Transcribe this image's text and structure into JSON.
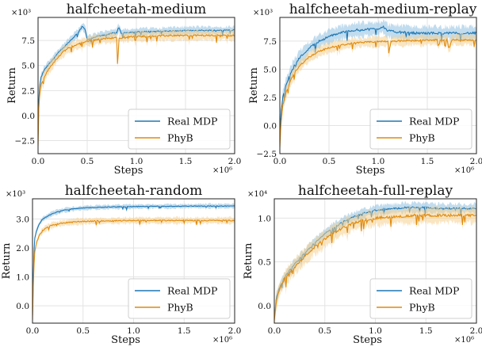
{
  "colors": {
    "real": "#1f77b4",
    "real_band": "#8ec0e0",
    "phyb": "#e08a0c",
    "phyb_band": "#f5cf8e",
    "grid": "#e3e3e3"
  },
  "chart_data": [
    {
      "type": "line",
      "title": "halfcheetah-medium",
      "xlabel": "Steps",
      "ylabel": "Return",
      "x_scale_label": "×10⁶",
      "y_scale_label": "×10³",
      "xlim": [
        0,
        2.0
      ],
      "ylim": [
        -3.8,
        9.8
      ],
      "xticks": [
        0.0,
        0.5,
        1.0,
        1.5,
        2.0
      ],
      "xtick_labels": [
        "0.0",
        "0.5",
        "1.0",
        "1.5",
        "2.0"
      ],
      "yticks": [
        -2.5,
        0.0,
        2.5,
        5.0,
        7.5
      ],
      "ytick_labels": [
        "−2.5",
        "0.0",
        "2.5",
        "5.0",
        "7.5"
      ],
      "grid": true,
      "legend_position": "lower-right",
      "series": [
        {
          "name": "Real MDP",
          "color_key": "real",
          "x": [
            0.0,
            0.01,
            0.03,
            0.06,
            0.1,
            0.15,
            0.2,
            0.25,
            0.3,
            0.35,
            0.4,
            0.45,
            0.48,
            0.5,
            0.55,
            0.6,
            0.7,
            0.8,
            0.82,
            0.85,
            0.9,
            1.0,
            1.2,
            1.4,
            1.6,
            1.8,
            2.0
          ],
          "y": [
            -2.0,
            2.5,
            3.8,
            4.5,
            5.0,
            5.6,
            6.2,
            6.7,
            7.2,
            7.7,
            8.2,
            8.9,
            8.6,
            7.6,
            7.7,
            7.9,
            8.1,
            8.3,
            8.8,
            8.2,
            8.3,
            8.35,
            8.4,
            8.45,
            8.5,
            8.5,
            8.55
          ],
          "band": 0.35
        },
        {
          "name": "PhyB",
          "color_key": "phyb",
          "x": [
            0.0,
            0.01,
            0.03,
            0.06,
            0.1,
            0.15,
            0.2,
            0.25,
            0.3,
            0.35,
            0.4,
            0.5,
            0.6,
            0.7,
            0.8,
            0.81,
            0.82,
            0.9,
            1.0,
            1.2,
            1.4,
            1.6,
            1.8,
            2.0
          ],
          "y": [
            -3.0,
            1.8,
            3.0,
            3.8,
            4.5,
            5.2,
            5.8,
            6.3,
            6.7,
            6.9,
            7.1,
            7.4,
            7.6,
            7.7,
            7.8,
            4.3,
            7.7,
            7.85,
            7.9,
            7.95,
            8.0,
            8.0,
            8.0,
            8.0
          ],
          "band": 0.45
        }
      ]
    },
    {
      "type": "line",
      "title": "halfcheetah-medium-replay",
      "xlabel": "Steps",
      "ylabel": "Return",
      "x_scale_label": "×10⁶",
      "y_scale_label": "×10³",
      "xlim": [
        0,
        2.0
      ],
      "ylim": [
        -2.5,
        9.6
      ],
      "xticks": [
        0.0,
        0.5,
        1.0,
        1.5,
        2.0
      ],
      "xtick_labels": [
        "0.0",
        "0.5",
        "1.0",
        "1.5",
        "2.0"
      ],
      "yticks": [
        -2.5,
        0.0,
        2.5,
        5.0,
        7.5
      ],
      "ytick_labels": [
        "−2.5",
        "0.0",
        "2.5",
        "5.0",
        "7.5"
      ],
      "grid": true,
      "legend_position": "lower-right",
      "series": [
        {
          "name": "Real MDP",
          "color_key": "real",
          "x": [
            0.0,
            0.01,
            0.03,
            0.06,
            0.1,
            0.15,
            0.2,
            0.3,
            0.4,
            0.5,
            0.6,
            0.7,
            0.8,
            0.9,
            1.0,
            1.05,
            1.1,
            1.2,
            1.3,
            1.4,
            1.6,
            1.8,
            2.0
          ],
          "y": [
            -1.0,
            1.0,
            2.5,
            3.5,
            4.5,
            5.4,
            6.0,
            6.9,
            7.5,
            7.9,
            8.2,
            8.4,
            8.5,
            8.55,
            8.6,
            8.8,
            8.4,
            8.3,
            8.25,
            8.2,
            8.2,
            8.2,
            8.2
          ],
          "band": 0.55
        },
        {
          "name": "PhyB",
          "color_key": "phyb",
          "x": [
            0.0,
            0.01,
            0.03,
            0.06,
            0.1,
            0.15,
            0.2,
            0.3,
            0.4,
            0.5,
            0.6,
            0.7,
            0.8,
            0.9,
            1.0,
            1.1,
            1.11,
            1.13,
            1.2,
            1.4,
            1.6,
            1.7,
            1.72,
            1.75,
            1.8,
            2.0
          ],
          "y": [
            -2.0,
            0.0,
            1.8,
            2.8,
            3.8,
            4.7,
            5.3,
            6.1,
            6.6,
            6.9,
            7.1,
            7.25,
            7.35,
            7.4,
            7.45,
            7.5,
            6.5,
            7.5,
            7.5,
            7.55,
            7.6,
            7.6,
            6.8,
            7.6,
            7.6,
            7.6
          ],
          "band": 0.4
        }
      ]
    },
    {
      "type": "line",
      "title": "halfcheetah-random",
      "xlabel": "Steps",
      "ylabel": "Return",
      "x_scale_label": "×10⁶",
      "y_scale_label": "×10³",
      "xlim": [
        0,
        2.0
      ],
      "ylim": [
        -0.6,
        3.7
      ],
      "xticks": [
        0.0,
        0.5,
        1.0,
        1.5,
        2.0
      ],
      "xtick_labels": [
        "0.0",
        "0.5",
        "1.0",
        "1.5",
        "2.0"
      ],
      "yticks": [
        0.0,
        1.0,
        2.0,
        3.0
      ],
      "ytick_labels": [
        "0.0",
        "1.0",
        "2.0",
        "3.0"
      ],
      "grid": true,
      "legend_position": "lower-right",
      "series": [
        {
          "name": "Real MDP",
          "color_key": "real",
          "x": [
            0.0,
            0.01,
            0.02,
            0.04,
            0.07,
            0.1,
            0.15,
            0.2,
            0.3,
            0.4,
            0.5,
            0.6,
            0.8,
            1.0,
            1.2,
            1.4,
            1.6,
            1.8,
            2.0
          ],
          "y": [
            -0.3,
            1.5,
            2.3,
            2.6,
            2.85,
            3.0,
            3.1,
            3.2,
            3.3,
            3.35,
            3.38,
            3.4,
            3.42,
            3.43,
            3.44,
            3.44,
            3.45,
            3.45,
            3.45
          ],
          "band": 0.07
        },
        {
          "name": "PhyB",
          "color_key": "phyb",
          "x": [
            0.0,
            0.01,
            0.02,
            0.04,
            0.07,
            0.1,
            0.15,
            0.2,
            0.3,
            0.4,
            0.5,
            0.6,
            0.8,
            1.0,
            1.2,
            1.4,
            1.6,
            1.8,
            2.0
          ],
          "y": [
            -0.5,
            1.0,
            1.8,
            2.2,
            2.45,
            2.6,
            2.72,
            2.8,
            2.86,
            2.9,
            2.92,
            2.93,
            2.94,
            2.95,
            2.95,
            2.95,
            2.95,
            2.95,
            2.95
          ],
          "band": 0.1
        }
      ]
    },
    {
      "type": "line",
      "title": "halfcheetah-full-replay",
      "xlabel": "Steps",
      "ylabel": "Return",
      "x_scale_label": "×10⁶",
      "y_scale_label": "×10⁴",
      "xlim": [
        0,
        2.0
      ],
      "ylim": [
        -0.2,
        1.22
      ],
      "xticks": [
        0.0,
        0.5,
        1.0,
        1.5,
        2.0
      ],
      "xtick_labels": [
        "0.0",
        "0.5",
        "1.0",
        "1.5",
        "2.0"
      ],
      "yticks": [
        0.0,
        0.5,
        1.0
      ],
      "ytick_labels": [
        "0.0",
        "0.5",
        "1.0"
      ],
      "grid": true,
      "legend_position": "lower-right",
      "series": [
        {
          "name": "Real MDP",
          "color_key": "real",
          "x": [
            0.0,
            0.02,
            0.05,
            0.1,
            0.15,
            0.2,
            0.3,
            0.4,
            0.5,
            0.6,
            0.7,
            0.8,
            0.9,
            1.0,
            1.1,
            1.2,
            1.3,
            1.4,
            1.5,
            1.6,
            1.8,
            2.0
          ],
          "y": [
            -0.15,
            0.1,
            0.2,
            0.32,
            0.4,
            0.47,
            0.6,
            0.72,
            0.82,
            0.9,
            0.97,
            1.02,
            1.06,
            1.09,
            1.1,
            1.11,
            1.12,
            1.12,
            1.12,
            1.11,
            1.11,
            1.11
          ],
          "band": 0.05
        },
        {
          "name": "PhyB",
          "color_key": "phyb",
          "x": [
            0.0,
            0.02,
            0.05,
            0.1,
            0.15,
            0.2,
            0.3,
            0.4,
            0.5,
            0.6,
            0.7,
            0.8,
            0.9,
            1.0,
            1.1,
            1.2,
            1.3,
            1.4,
            1.5,
            1.6,
            1.8,
            2.0
          ],
          "y": [
            -0.18,
            0.05,
            0.18,
            0.3,
            0.38,
            0.44,
            0.56,
            0.67,
            0.76,
            0.84,
            0.9,
            0.95,
            0.98,
            1.0,
            1.01,
            1.02,
            1.02,
            1.03,
            1.03,
            1.03,
            1.03,
            1.03
          ],
          "band": 0.08
        }
      ]
    }
  ]
}
